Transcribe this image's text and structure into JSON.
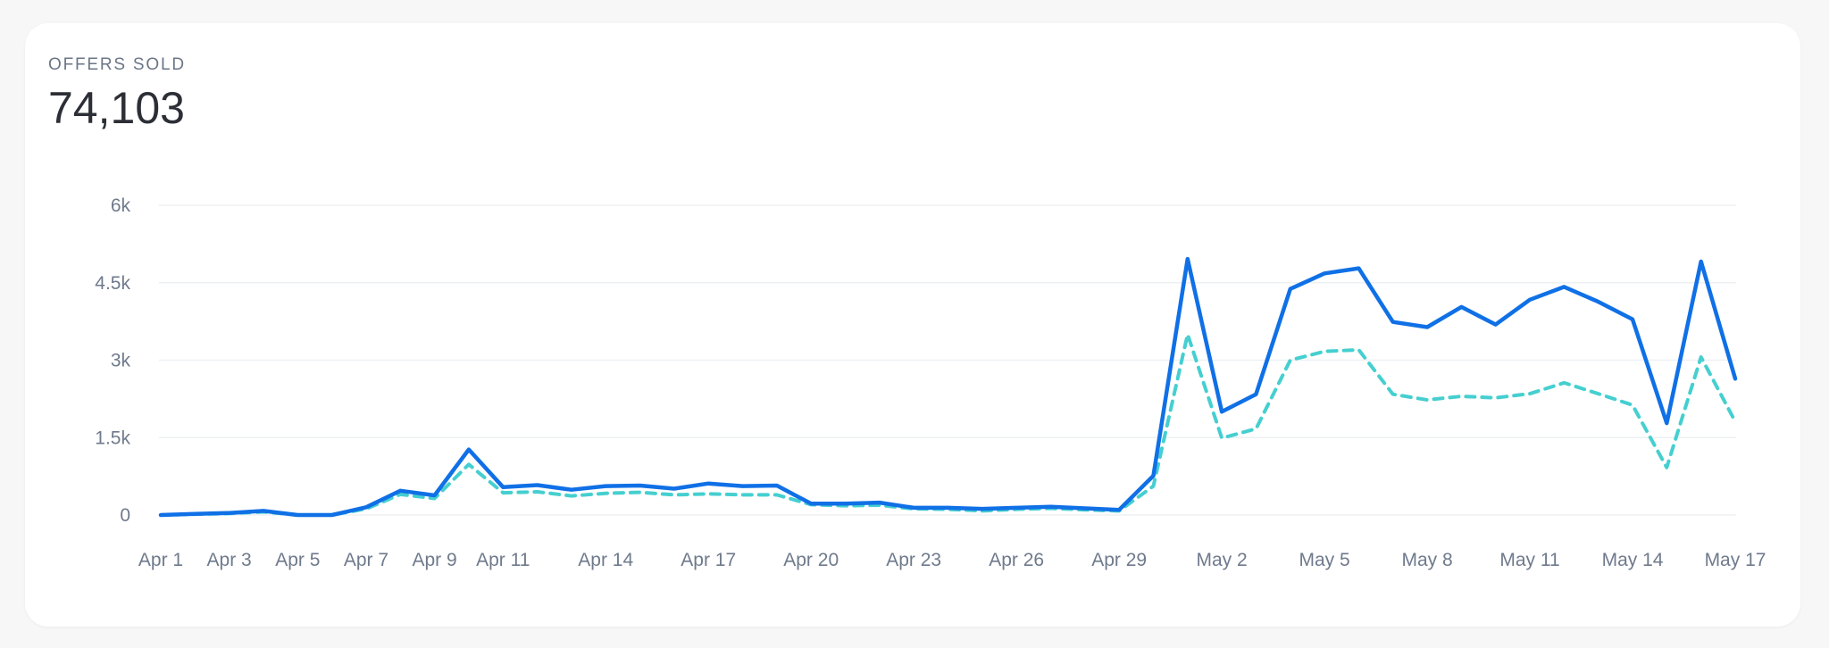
{
  "card": {
    "title": "OFFERS SOLD",
    "total": "74,103"
  },
  "colors": {
    "series_primary": "#1070e6",
    "series_secondary": "#45cfd0",
    "grid": "#edf0f3",
    "tick_text": "#6f7a8c"
  },
  "chart_data": {
    "type": "line",
    "title": "OFFERS SOLD",
    "xlabel": "",
    "ylabel": "",
    "ylim": [
      0,
      6000
    ],
    "y_ticks": [
      "0",
      "1.5k",
      "3k",
      "4.5k",
      "6k"
    ],
    "y_tick_values": [
      0,
      1500,
      3000,
      4500,
      6000
    ],
    "grid": true,
    "x": [
      "Apr 1",
      "Apr 2",
      "Apr 3",
      "Apr 4",
      "Apr 5",
      "Apr 6",
      "Apr 7",
      "Apr 8",
      "Apr 9",
      "Apr 10",
      "Apr 11",
      "Apr 12",
      "Apr 13",
      "Apr 14",
      "Apr 15",
      "Apr 16",
      "Apr 17",
      "Apr 18",
      "Apr 19",
      "Apr 20",
      "Apr 21",
      "Apr 22",
      "Apr 23",
      "Apr 24",
      "Apr 25",
      "Apr 26",
      "Apr 27",
      "Apr 28",
      "Apr 29",
      "Apr 30",
      "May 1",
      "May 2",
      "May 3",
      "May 4",
      "May 5",
      "May 6",
      "May 7",
      "May 8",
      "May 9",
      "May 10",
      "May 11",
      "May 12",
      "May 13",
      "May 14",
      "May 15",
      "May 16",
      "May 17"
    ],
    "x_tick_labels": [
      "Apr 1",
      "Apr 3",
      "Apr 5",
      "Apr 7",
      "Apr 9",
      "Apr 11",
      "Apr 14",
      "Apr 17",
      "Apr 20",
      "Apr 23",
      "Apr 26",
      "Apr 29",
      "May 2",
      "May 5",
      "May 8",
      "May 11",
      "May 14",
      "May 17"
    ],
    "series": [
      {
        "style": "solid",
        "values": [
          0,
          20,
          40,
          80,
          0,
          0,
          150,
          470,
          380,
          1270,
          540,
          580,
          490,
          560,
          570,
          510,
          610,
          560,
          570,
          220,
          220,
          240,
          140,
          140,
          120,
          140,
          160,
          130,
          100,
          760,
          4960,
          2000,
          2340,
          4380,
          4680,
          4780,
          3740,
          3640,
          4030,
          3690,
          4170,
          4420,
          4130,
          3790,
          1780,
          4910,
          2640
        ]
      },
      {
        "style": "dashed",
        "values": [
          0,
          15,
          30,
          60,
          0,
          0,
          120,
          400,
          320,
          980,
          430,
          450,
          370,
          420,
          440,
          390,
          410,
          390,
          390,
          200,
          180,
          190,
          120,
          110,
          80,
          110,
          130,
          100,
          80,
          560,
          3500,
          1490,
          1670,
          3000,
          3170,
          3200,
          2340,
          2230,
          2300,
          2270,
          2350,
          2560,
          2350,
          2130,
          920,
          3060,
          1810
        ]
      }
    ]
  }
}
